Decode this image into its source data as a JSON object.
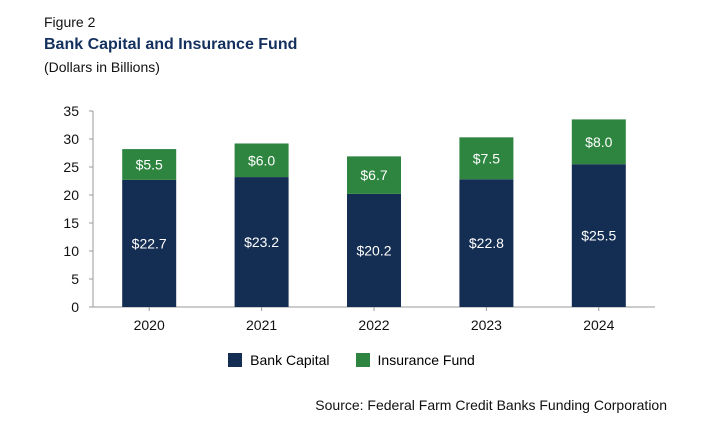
{
  "figure_label": "Figure 2",
  "chart_data": {
    "type": "bar",
    "stacked": true,
    "title": "Bank Capital and Insurance Fund",
    "subtitle": "(Dollars in Billions)",
    "categories": [
      "2020",
      "2021",
      "2022",
      "2023",
      "2024"
    ],
    "series": [
      {
        "name": "Bank Capital",
        "values": [
          22.7,
          23.2,
          20.2,
          22.8,
          25.5
        ],
        "labels": [
          "$22.7",
          "$23.2",
          "$20.2",
          "$22.8",
          "$25.5"
        ],
        "color": "#142d52"
      },
      {
        "name": "Insurance Fund",
        "values": [
          5.5,
          6.0,
          6.7,
          7.5,
          8.0
        ],
        "labels": [
          "$5.5",
          "$6.0",
          "$6.7",
          "$7.5",
          "$8.0"
        ],
        "color": "#2e8540"
      }
    ],
    "ylim": [
      0,
      35
    ],
    "yticks": [
      "0",
      "5",
      "10",
      "15",
      "20",
      "25",
      "30",
      "35"
    ],
    "grid": false,
    "legend": "bottom",
    "source": "Source: Federal Farm Credit Banks Funding Corporation"
  }
}
